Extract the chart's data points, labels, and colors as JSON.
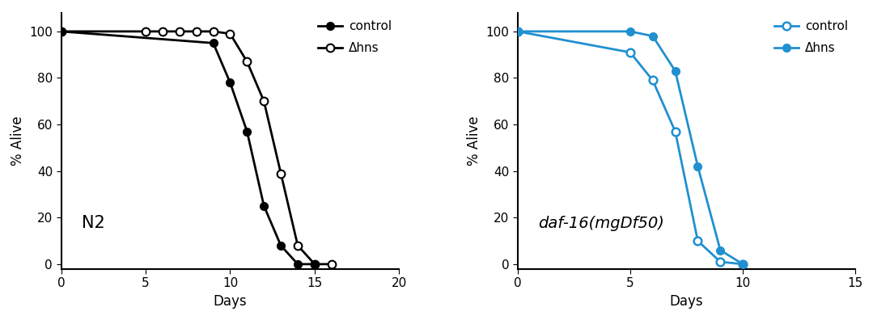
{
  "n2_control_x": [
    0,
    9,
    10,
    11,
    12,
    13,
    14,
    15
  ],
  "n2_control_y": [
    100,
    95,
    78,
    57,
    25,
    8,
    0,
    0
  ],
  "n2_hns_x": [
    0,
    5,
    6,
    7,
    8,
    9,
    10,
    11,
    12,
    13,
    14,
    15,
    16
  ],
  "n2_hns_y": [
    100,
    100,
    100,
    100,
    100,
    100,
    99,
    87,
    70,
    39,
    8,
    0,
    0
  ],
  "daf_control_x": [
    0,
    5,
    6,
    7,
    8,
    9,
    10
  ],
  "daf_control_y": [
    100,
    91,
    79,
    57,
    10,
    1,
    0
  ],
  "daf_hns_x": [
    0,
    5,
    6,
    7,
    8,
    9,
    10
  ],
  "daf_hns_y": [
    100,
    100,
    98,
    83,
    42,
    6,
    0
  ],
  "n2_xlim": [
    0,
    20
  ],
  "n2_xticks": [
    0,
    5,
    10,
    15,
    20
  ],
  "daf_xlim": [
    0,
    15
  ],
  "daf_xticks": [
    0,
    5,
    10,
    15
  ],
  "ylim": [
    -2,
    108
  ],
  "yticks": [
    0,
    20,
    40,
    60,
    80,
    100
  ],
  "ylabel": "% Alive",
  "xlabel": "Days",
  "n2_label": "N2",
  "daf_label": "daf-16(mgDf50)",
  "control_label": "control",
  "hns_label": "Δhns",
  "line_color_black": "#000000",
  "line_color_blue": "#2090D0",
  "background_color": "#ffffff",
  "linewidth": 2.0,
  "markersize": 7,
  "fontsize_label": 12,
  "fontsize_tick": 11,
  "fontsize_legend": 11,
  "fontsize_annotation": 14
}
